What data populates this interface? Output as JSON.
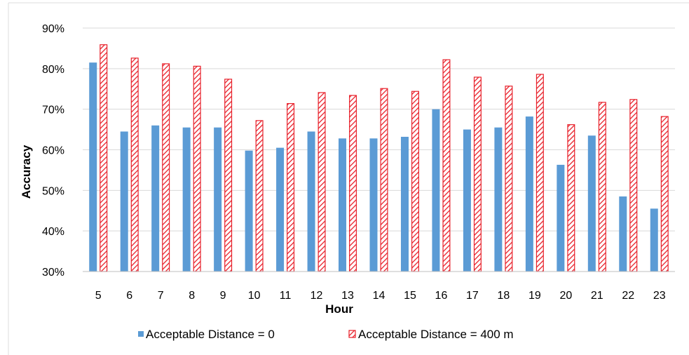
{
  "chart_data": {
    "type": "bar",
    "xlabel": "Hour",
    "ylabel": "Accuracy",
    "ylim": [
      30,
      90
    ],
    "yticks": [
      30,
      40,
      50,
      60,
      70,
      80,
      90
    ],
    "ytick_labels": [
      "30%",
      "40%",
      "50%",
      "60%",
      "70%",
      "80%",
      "90%"
    ],
    "grid": true,
    "legend_position": "bottom",
    "categories": [
      "5",
      "6",
      "7",
      "8",
      "9",
      "10",
      "11",
      "12",
      "13",
      "14",
      "15",
      "16",
      "17",
      "18",
      "19",
      "20",
      "21",
      "22",
      "23"
    ],
    "series": [
      {
        "name": "Acceptable Distance = 0",
        "color": "#5b9bd5",
        "values": [
          81.5,
          64.5,
          66,
          65.5,
          65.5,
          59.8,
          60.5,
          64.5,
          62.8,
          62.8,
          63.2,
          70,
          65,
          65.5,
          68.2,
          56.3,
          63.5,
          48.5,
          45.5
        ]
      },
      {
        "name": "Acceptable Distance = 400 m",
        "color": "#e8202a",
        "pattern": "diagonal-hatch",
        "values": [
          86,
          82.7,
          81.3,
          80.7,
          77.5,
          67.3,
          71.5,
          74.2,
          73.5,
          75.2,
          74.5,
          82.3,
          78,
          75.8,
          78.7,
          66.3,
          71.8,
          72.5,
          68.3
        ]
      }
    ]
  }
}
